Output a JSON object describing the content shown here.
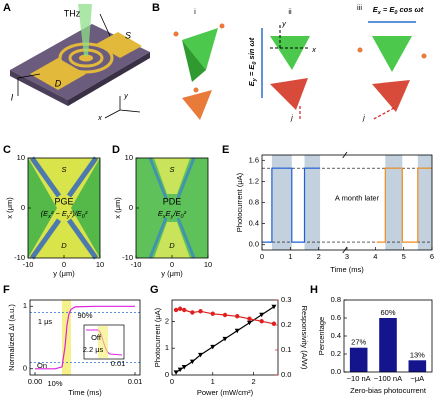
{
  "figure": {
    "panel_labels": [
      "A",
      "B",
      "C",
      "D",
      "E",
      "F",
      "G",
      "H"
    ],
    "a": {
      "thz": "THz",
      "s": "S",
      "d": "D",
      "i": "I",
      "x": "x",
      "y": "y"
    },
    "b": {
      "i": "i",
      "ii": "ii",
      "iii": "iii",
      "eq_ii": [
        "E",
        "y",
        " = E",
        "0",
        " sin ωt"
      ],
      "eq_iii": [
        "E",
        "x",
        " = E",
        "0",
        " cos ωt"
      ],
      "x": "x",
      "y": "y",
      "j": "j"
    }
  },
  "chart_data": [
    {
      "type": "map",
      "title": "PGE",
      "formula": [
        "(E",
        "x",
        "² − E",
        "y",
        "²)/E",
        "0",
        "²"
      ],
      "source": "S",
      "drain": "D",
      "xlabel": "y (μm)",
      "ylabel": "x (μm)",
      "xlim": [
        -10,
        10
      ],
      "ylim": [
        -10,
        10
      ],
      "xticks": [
        -10,
        0,
        10
      ],
      "yticks": [
        -10,
        0,
        10
      ]
    },
    {
      "type": "map",
      "title": "PDE",
      "formula": [
        "E",
        "x",
        "E",
        "y",
        "/E",
        "0",
        "²"
      ],
      "source": "S",
      "drain": "D",
      "xlabel": "y (μm)",
      "ylabel": "x (μm)",
      "xlim": [
        -10,
        10
      ],
      "ylim": [
        -10,
        10
      ],
      "xticks": [
        -10,
        0,
        10
      ],
      "yticks": [
        -10,
        0,
        10
      ]
    },
    {
      "type": "line",
      "xlabel": "Time (ms)",
      "ylabel": "Photocurrent (μA)",
      "annotation": "A month later",
      "xlim": [
        0,
        6
      ],
      "xticks": [
        0,
        1,
        2,
        3,
        4,
        5,
        6
      ],
      "ylim": [
        -0.1,
        1.7
      ],
      "yticks": [
        {
          "value": 0,
          "label": "0.0"
        },
        {
          "value": 0.4,
          "label": "0.4"
        },
        {
          "value": 0.8,
          "label": "0.8"
        },
        {
          "value": 1.2,
          "label": "1.2"
        },
        {
          "value": 1.6,
          "label": "1.6"
        }
      ],
      "series": [
        {
          "color": "#1f5fd6",
          "x": [
            0,
            0.35,
            0.35,
            1.05,
            1.05,
            1.5,
            1.5,
            2.05
          ],
          "values": [
            0.05,
            0.05,
            1.45,
            1.45,
            0.05,
            0.05,
            1.45,
            1.45
          ]
        },
        {
          "color": "#f08a1c",
          "x": [
            4.05,
            4.35,
            4.35,
            4.95,
            4.95,
            5.5,
            5.5,
            6.0
          ],
          "values": [
            0.05,
            0.05,
            1.45,
            1.45,
            0.05,
            0.05,
            1.45,
            1.45
          ]
        }
      ]
    },
    {
      "type": "line",
      "xlabel": "Time (ms)",
      "ylabel": "Normalized ΔI (a.u.)",
      "annotations": {
        "p90": "90%",
        "p10": "10%",
        "on": "On",
        "rise": "1 μs",
        "off": "Off",
        "fall": "2.2 μs",
        "inset_tick": "0.01"
      },
      "xlim": [
        -0.0005,
        0.0105
      ],
      "xticks": [
        {
          "value": 0,
          "label": "0.00"
        },
        {
          "value": 0.01,
          "label": "0.01"
        }
      ],
      "ylim": [
        -0.1,
        1.1
      ],
      "yticks": [
        0,
        1
      ],
      "series": [
        {
          "color": "#e020e0",
          "x": [
            0,
            0.001,
            0.002,
            0.0027,
            0.003,
            0.0032,
            0.0034,
            0.0036,
            0.004,
            0.006,
            0.008,
            0.01
          ],
          "values": [
            0,
            0,
            0,
            0.03,
            0.35,
            0.7,
            0.88,
            0.95,
            0.99,
            1,
            1,
            1
          ]
        }
      ]
    },
    {
      "type": "scatter",
      "xlabel": "Power (mW/cm²)",
      "ylabel": "Photocurrent (μA)",
      "y2label": "Responsivity (A/W)",
      "xlim": [
        0,
        2.6
      ],
      "xticks": [
        0,
        1,
        2
      ],
      "ylim": [
        0,
        2.8
      ],
      "yticks": [
        0,
        1,
        2
      ],
      "y2lim": [
        0,
        0.3
      ],
      "y2ticks": [
        {
          "value": 0,
          "label": "0.0"
        },
        {
          "value": 0.1,
          "label": "0.1"
        },
        {
          "value": 0.2,
          "label": "0.2"
        },
        {
          "value": 0.3,
          "label": "0.3"
        }
      ],
      "y2color": "#e02020",
      "series": [
        {
          "color": "#000000",
          "marker": "triangle",
          "x": [
            0.1,
            0.2,
            0.3,
            0.5,
            0.7,
            1.0,
            1.3,
            1.6,
            1.9,
            2.2,
            2.5
          ],
          "values": [
            0.1,
            0.2,
            0.3,
            0.5,
            0.75,
            1.05,
            1.35,
            1.65,
            1.95,
            2.25,
            2.55
          ]
        },
        {
          "color": "#e02020",
          "marker": "circle",
          "axis": "y2",
          "x": [
            0.1,
            0.2,
            0.3,
            0.5,
            0.7,
            1.0,
            1.3,
            1.6,
            1.9,
            2.2,
            2.5
          ],
          "values": [
            0.26,
            0.265,
            0.26,
            0.25,
            0.255,
            0.245,
            0.24,
            0.235,
            0.225,
            0.215,
            0.205
          ]
        }
      ]
    },
    {
      "type": "bar",
      "xlabel": "Zero-bias photocurrent",
      "ylabel": "Percentage",
      "categories": [
        "~10 nA",
        "~100 nA",
        "~μA"
      ],
      "values": [
        0.27,
        0.6,
        0.13
      ],
      "value_labels": [
        "27%",
        "60%",
        "13%"
      ],
      "color": "#14148c",
      "ylim": [
        0,
        0.8
      ],
      "yticks": [
        {
          "value": 0,
          "label": "0.0"
        },
        {
          "value": 0.2,
          "label": "0.2"
        },
        {
          "value": 0.4,
          "label": "0.4"
        },
        {
          "value": 0.6,
          "label": "0.6"
        },
        {
          "value": 0.8,
          "label": "0.8"
        }
      ]
    }
  ]
}
